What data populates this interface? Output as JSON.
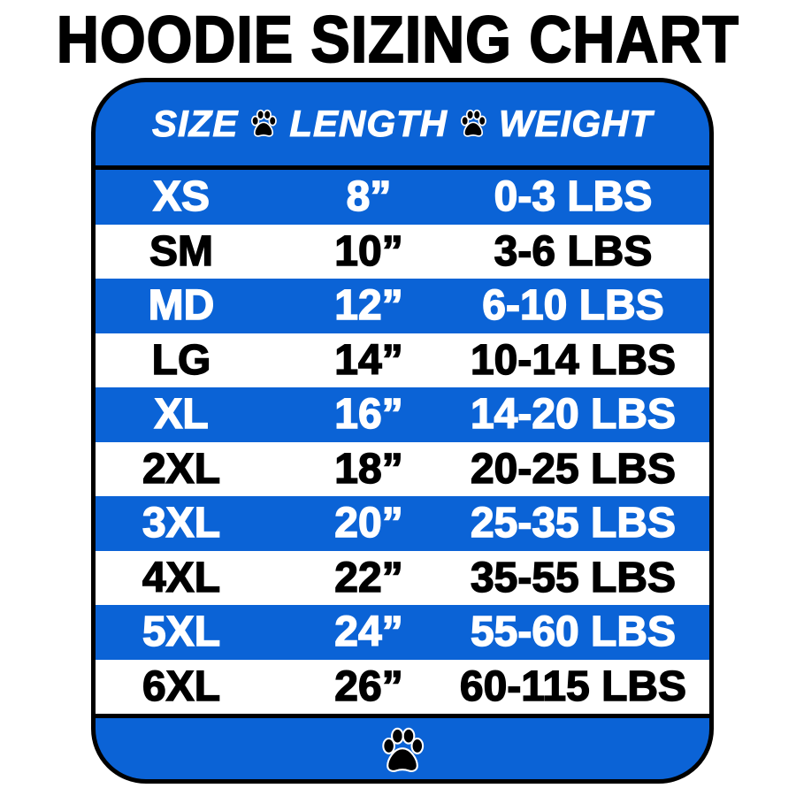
{
  "title": "HOODIE SIZING CHART",
  "colors": {
    "blue": "#0b63d6",
    "white": "#ffffff",
    "black": "#000000"
  },
  "header": {
    "size": "SIZE",
    "length": "LENGTH",
    "weight": "WEIGHT",
    "separator_icon": "paw-print-icon"
  },
  "rows": [
    {
      "size": "XS",
      "length": "8”",
      "weight": "0-3 LBS"
    },
    {
      "size": "SM",
      "length": "10”",
      "weight": "3-6 LBS"
    },
    {
      "size": "MD",
      "length": "12”",
      "weight": "6-10 LBS"
    },
    {
      "size": "LG",
      "length": "14”",
      "weight": "10-14 LBS"
    },
    {
      "size": "XL",
      "length": "16”",
      "weight": "14-20 LBS"
    },
    {
      "size": "2XL",
      "length": "18”",
      "weight": "20-25 LBS"
    },
    {
      "size": "3XL",
      "length": "20”",
      "weight": "25-35 LBS"
    },
    {
      "size": "4XL",
      "length": "22”",
      "weight": "35-55 LBS"
    },
    {
      "size": "5XL",
      "length": "24”",
      "weight": "55-60 LBS"
    },
    {
      "size": "6XL",
      "length": "26”",
      "weight": "60-115 LBS"
    }
  ],
  "footer": {
    "icon": "paw-print-icon"
  }
}
